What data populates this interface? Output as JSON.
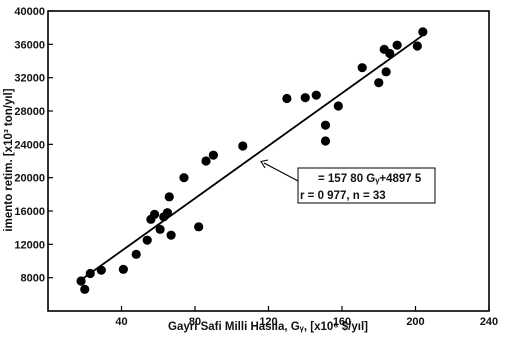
{
  "chart_data": {
    "type": "scatter",
    "xlabel": "Gayri Safi Milli Hasıla, Gᵧ, [x10⁶ $/yıl]",
    "ylabel": "imento retim. [x10³ ton/yıl]",
    "xlim": [
      0,
      240
    ],
    "ylim": [
      4000,
      40000
    ],
    "x_ticks": [
      40,
      80,
      120,
      160,
      200,
      240
    ],
    "y_ticks": [
      8000,
      12000,
      16000,
      20000,
      24000,
      28000,
      32000,
      36000,
      40000
    ],
    "grid": false,
    "regression": {
      "equation": "= 157 80 Gᵧ+4897 5",
      "stats": "r = 0 977, n = 33",
      "slope": 157.8,
      "intercept": 4897.5,
      "x_range": [
        17,
        205
      ]
    },
    "points": [
      {
        "x": 18,
        "y": 7600
      },
      {
        "x": 20,
        "y": 6600
      },
      {
        "x": 23,
        "y": 8500
      },
      {
        "x": 29,
        "y": 8900
      },
      {
        "x": 41,
        "y": 9000
      },
      {
        "x": 48,
        "y": 10800
      },
      {
        "x": 54,
        "y": 12500
      },
      {
        "x": 56,
        "y": 15000
      },
      {
        "x": 58,
        "y": 15600
      },
      {
        "x": 61,
        "y": 13800
      },
      {
        "x": 63,
        "y": 15300
      },
      {
        "x": 65,
        "y": 15800
      },
      {
        "x": 66,
        "y": 17700
      },
      {
        "x": 67,
        "y": 13100
      },
      {
        "x": 74,
        "y": 20000
      },
      {
        "x": 82,
        "y": 14100
      },
      {
        "x": 86,
        "y": 22000
      },
      {
        "x": 90,
        "y": 22700
      },
      {
        "x": 106,
        "y": 23800
      },
      {
        "x": 130,
        "y": 29500
      },
      {
        "x": 146,
        "y": 29900
      },
      {
        "x": 151,
        "y": 26300
      },
      {
        "x": 151,
        "y": 24400
      },
      {
        "x": 158,
        "y": 28600
      },
      {
        "x": 171,
        "y": 33200
      },
      {
        "x": 180,
        "y": 31400
      },
      {
        "x": 183,
        "y": 35400
      },
      {
        "x": 184,
        "y": 32700
      },
      {
        "x": 186,
        "y": 34900
      },
      {
        "x": 190,
        "y": 35900
      },
      {
        "x": 201,
        "y": 35800
      },
      {
        "x": 204,
        "y": 37500
      },
      {
        "x": 140,
        "y": 29600
      }
    ]
  }
}
